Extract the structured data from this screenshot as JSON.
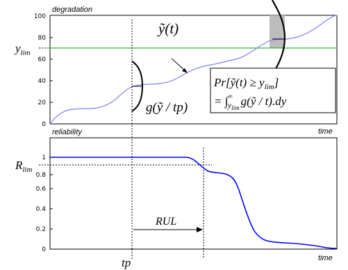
{
  "top_panel": {
    "axis_title": "degradation",
    "time_label": "time",
    "y_threshold_label": "y",
    "y_threshold_sub": "lim",
    "curve_label": "ỹ(t)",
    "pdf_label": "g(ỹ / tp)",
    "prob_line1": "Pr[ỹ(t) ≥ y",
    "prob_line1_sub": "lim",
    "prob_line1_end": "]",
    "prob_line2": "= ∫",
    "prob_line2_sub": "y",
    "prob_line2_subsub": "lim",
    "prob_line2_sup": "∞",
    "prob_line2_end": "g(ỹ / t).dy",
    "y_ticks": [
      "0",
      "20",
      "40",
      "60",
      "80",
      "100"
    ],
    "threshold_value": 70
  },
  "bottom_panel": {
    "axis_title": "reliability",
    "time_label": "time",
    "r_threshold_label": "R",
    "r_threshold_sub": "lim",
    "y_ticks": [
      "0",
      "0.2",
      "0.4",
      "0.6",
      "0.8",
      "1"
    ],
    "rul_label": "RUL",
    "threshold_value": 0.9
  },
  "tp_label": "tp",
  "colors": {
    "curve": "#0000ff",
    "degradation_curve": "#8080ff",
    "threshold": "#00aa00",
    "shade": "#bdbdbd"
  }
}
